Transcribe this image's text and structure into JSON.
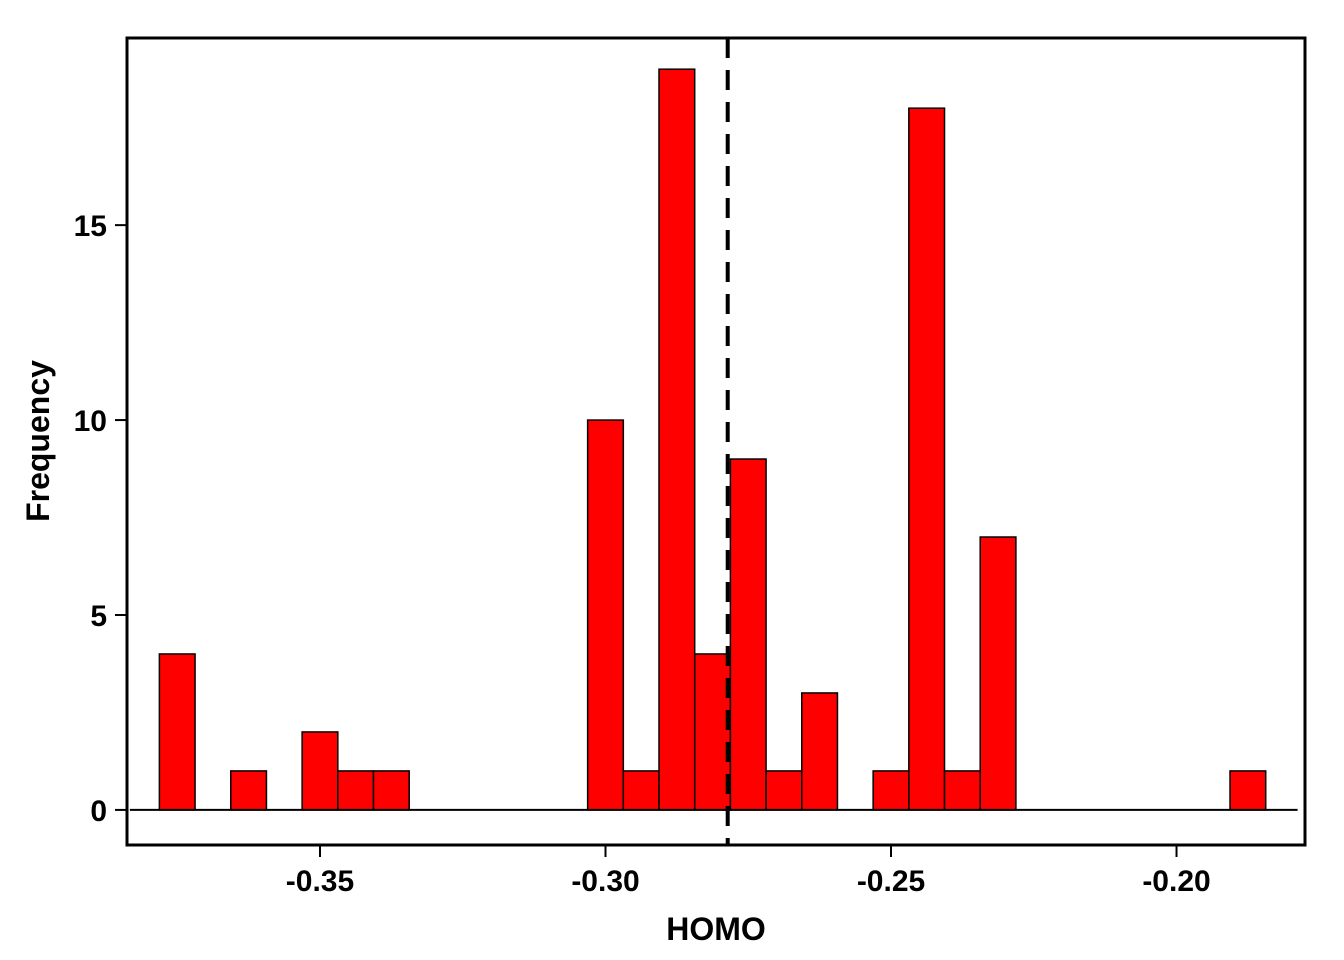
{
  "chart_data": {
    "type": "bar",
    "subtype": "histogram",
    "xlabel": "HOMO",
    "ylabel": "Frequency",
    "bar_color": "#ff0000",
    "bar_stroke": "#000000",
    "bin_width": 0.00625,
    "xlim": [
      -0.3838,
      -0.1775
    ],
    "ylim": [
      -0.9,
      19.8
    ],
    "x_ticks": [
      -0.35,
      -0.3,
      -0.25,
      -0.2
    ],
    "x_tick_labels": [
      "-0.35",
      "-0.30",
      "-0.25",
      "-0.20"
    ],
    "y_ticks": [
      0,
      5,
      10,
      15
    ],
    "y_tick_labels": [
      "0",
      "5",
      "10",
      "15"
    ],
    "bins": [
      {
        "x0": -0.37813,
        "count": 4
      },
      {
        "x0": -0.37188,
        "count": 0
      },
      {
        "x0": -0.36563,
        "count": 1
      },
      {
        "x0": -0.35938,
        "count": 0
      },
      {
        "x0": -0.35313,
        "count": 2
      },
      {
        "x0": -0.34688,
        "count": 1
      },
      {
        "x0": -0.34063,
        "count": 1
      },
      {
        "x0": -0.33438,
        "count": 0
      },
      {
        "x0": -0.32813,
        "count": 0
      },
      {
        "x0": -0.32188,
        "count": 0
      },
      {
        "x0": -0.31563,
        "count": 0
      },
      {
        "x0": -0.30938,
        "count": 0
      },
      {
        "x0": -0.30313,
        "count": 10
      },
      {
        "x0": -0.29688,
        "count": 1
      },
      {
        "x0": -0.29063,
        "count": 19
      },
      {
        "x0": -0.28438,
        "count": 4
      },
      {
        "x0": -0.27813,
        "count": 9
      },
      {
        "x0": -0.27188,
        "count": 1
      },
      {
        "x0": -0.26563,
        "count": 3
      },
      {
        "x0": -0.25938,
        "count": 0
      },
      {
        "x0": -0.25313,
        "count": 1
      },
      {
        "x0": -0.24688,
        "count": 18
      },
      {
        "x0": -0.24063,
        "count": 1
      },
      {
        "x0": -0.23438,
        "count": 7
      },
      {
        "x0": -0.22813,
        "count": 0
      },
      {
        "x0": -0.22188,
        "count": 0
      },
      {
        "x0": -0.21563,
        "count": 0
      },
      {
        "x0": -0.20938,
        "count": 0
      },
      {
        "x0": -0.20313,
        "count": 0
      },
      {
        "x0": -0.19688,
        "count": 0
      },
      {
        "x0": -0.19063,
        "count": 1
      }
    ],
    "baseline_range": [
      -0.3833,
      -0.1788
    ],
    "reference_line": {
      "x": -0.2786,
      "style": "dashed",
      "color": "#000000"
    },
    "grid": false,
    "legend": "none"
  }
}
